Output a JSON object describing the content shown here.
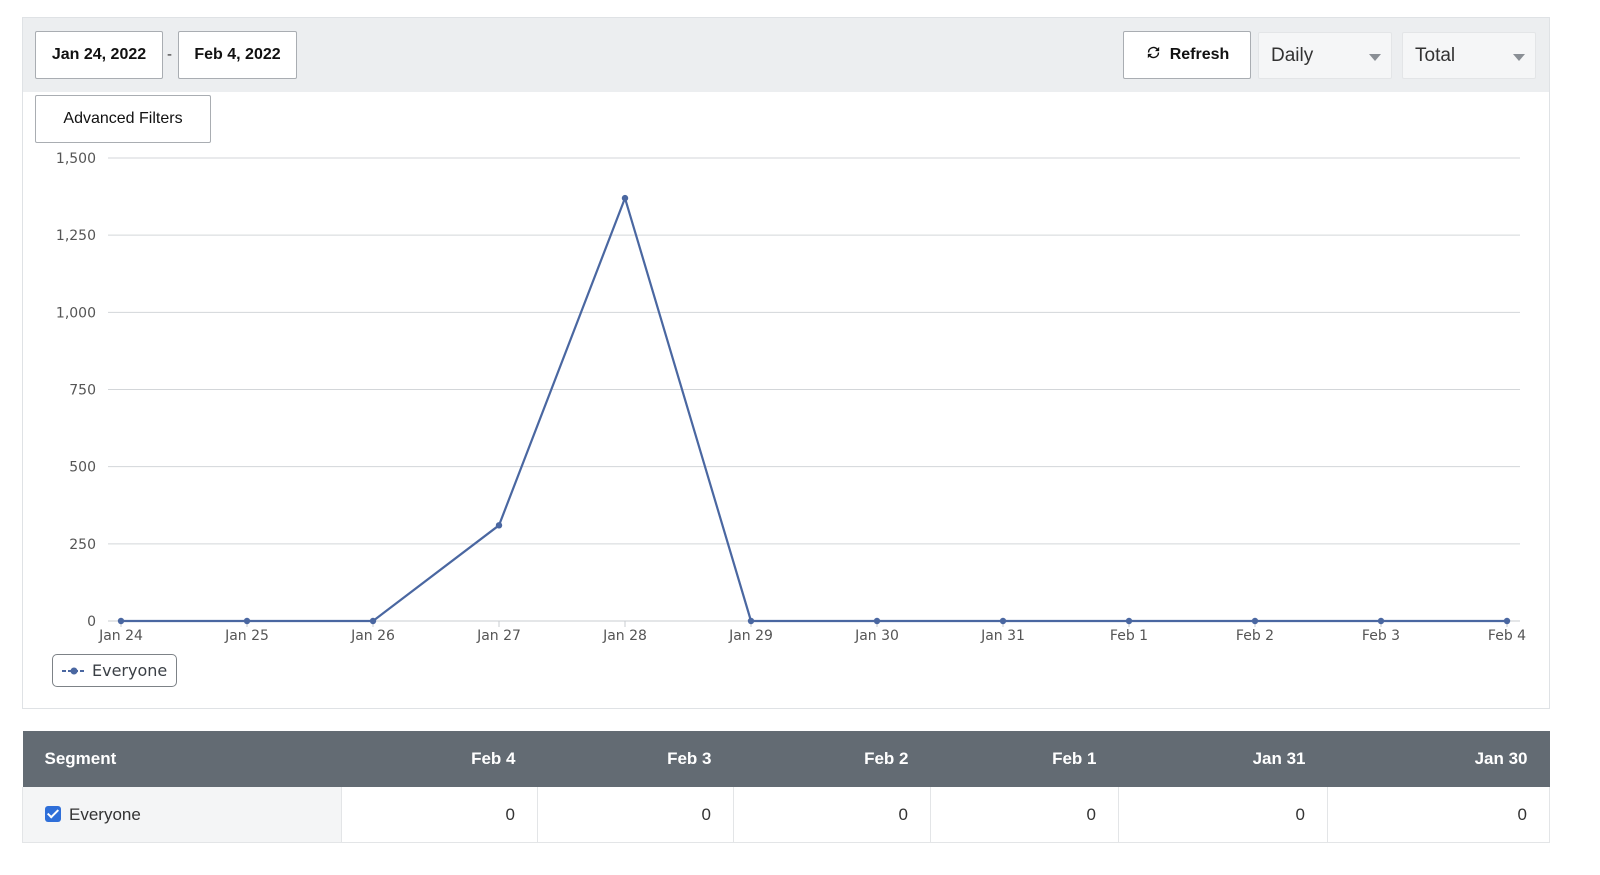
{
  "toolbar": {
    "date_from": "Jan 24, 2022",
    "date_separator": "-",
    "date_to": "Feb 4, 2022",
    "refresh_label": "Refresh",
    "interval_select": "Daily",
    "metric_select": "Total",
    "advanced_filters_label": "Advanced Filters"
  },
  "legend": {
    "label": "Everyone"
  },
  "colors": {
    "series": "#4a67a1",
    "header_bg": "#636b73",
    "checkbox": "#2f6fd9"
  },
  "chart_data": {
    "type": "line",
    "x": [
      "Jan 24",
      "Jan 25",
      "Jan 26",
      "Jan 27",
      "Jan 28",
      "Jan 29",
      "Jan 30",
      "Jan 31",
      "Feb 1",
      "Feb 2",
      "Feb 3",
      "Feb 4"
    ],
    "series": [
      {
        "name": "Everyone",
        "values": [
          0,
          0,
          0,
          310,
          1370,
          0,
          0,
          0,
          0,
          0,
          0,
          0
        ]
      }
    ],
    "yticks": [
      "0",
      "250",
      "500",
      "750",
      "1,000",
      "1,250",
      "1,500"
    ],
    "ylim": [
      0,
      1500
    ],
    "grid": true,
    "legend_position": "bottom-left"
  },
  "table": {
    "headers": [
      "Segment",
      "Feb 4",
      "Feb 3",
      "Feb 2",
      "Feb 1",
      "Jan 31",
      "Jan 30"
    ],
    "rows": [
      {
        "segment": "Everyone",
        "checked": true,
        "values": [
          "0",
          "0",
          "0",
          "0",
          "0",
          "0"
        ]
      }
    ]
  }
}
